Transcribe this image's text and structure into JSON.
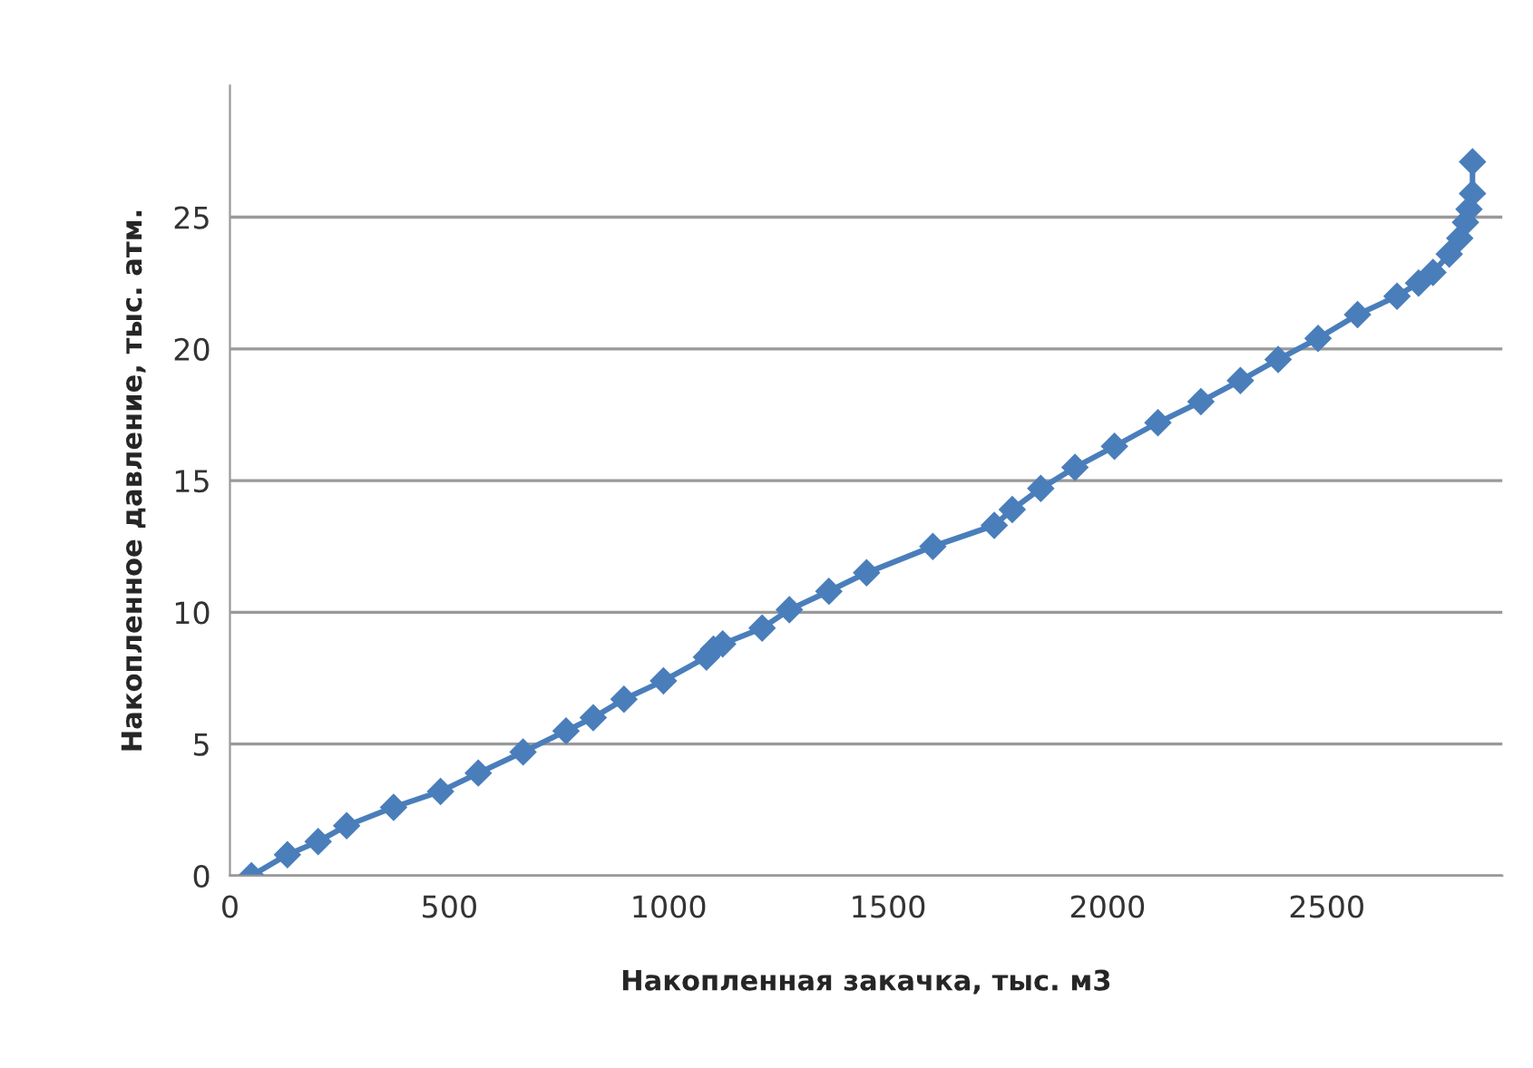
{
  "chart_data": {
    "type": "line",
    "xlabel": "Накопленная закачка, тыс. м3",
    "ylabel": "Накопленное давление, тыс. атм.",
    "xlim": [
      0,
      2900
    ],
    "ylim": [
      0,
      30
    ],
    "xticks": [
      0,
      500,
      1000,
      1500,
      2000,
      2500
    ],
    "yticks": [
      0,
      5,
      10,
      15,
      20,
      25
    ],
    "grid": "y",
    "marker": "diamond",
    "line_style": "solid",
    "series": [
      {
        "color": "#4a7ebb",
        "x": [
          49,
          131,
          201,
          266,
          373,
          480,
          566,
          668,
          766,
          828,
          898,
          988,
          1086,
          1102,
          1123,
          1213,
          1275,
          1365,
          1451,
          1602,
          1742,
          1783,
          1848,
          1926,
          2016,
          2115,
          2213,
          2303,
          2389,
          2480,
          2570,
          2660,
          2709,
          2742,
          2779,
          2803,
          2816,
          2824,
          2832,
          2832
        ],
        "values": [
          0,
          0.8,
          1.3,
          1.9,
          2.6,
          3.2,
          3.9,
          4.7,
          5.5,
          6.0,
          6.7,
          7.4,
          8.3,
          8.6,
          8.8,
          9.4,
          10.1,
          10.8,
          11.5,
          12.5,
          13.3,
          13.9,
          14.7,
          15.5,
          16.3,
          17.2,
          18.0,
          18.8,
          19.6,
          20.4,
          21.3,
          22.0,
          22.5,
          22.9,
          23.6,
          24.2,
          24.8,
          25.3,
          25.9,
          27.1
        ]
      }
    ]
  }
}
